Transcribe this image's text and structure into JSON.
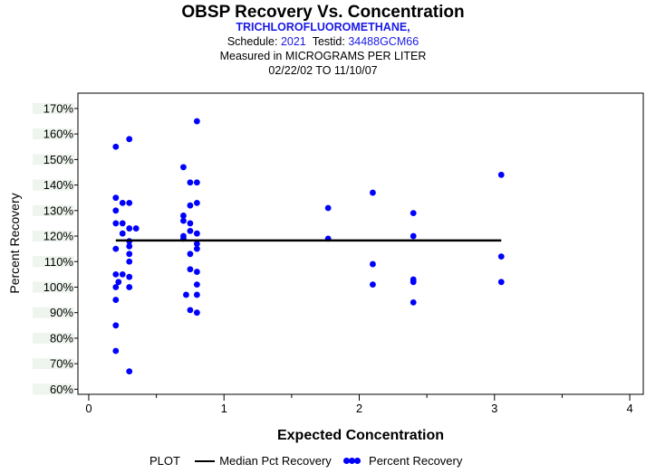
{
  "header": {
    "title": "OBSP Recovery Vs. Concentration",
    "compound": "TRICHLOROFLUOROMETHANE,",
    "schedule_label": "Schedule:",
    "schedule_value": "2021",
    "testid_label": "Testid:",
    "testid_value": "34488GCM66",
    "measured": "Measured in  MICROGRAMS PER LITER",
    "date_range": "02/22/02 TO 11/10/07"
  },
  "legend": {
    "title": "PLOT",
    "median_label": "Median Pct Recovery",
    "points_label": "Percent Recovery"
  },
  "colors": {
    "points": "#0000ff",
    "median": "#000000",
    "axis": "#000000"
  },
  "chart_data": {
    "type": "scatter",
    "title": "OBSP Recovery Vs. Concentration",
    "xlabel": "Expected Concentration",
    "ylabel": "Percent Recovery",
    "xlim": [
      -0.08,
      4.1
    ],
    "ylim": [
      58,
      176
    ],
    "x_ticks": [
      0,
      1,
      2,
      3,
      4
    ],
    "x_tick_labels": [
      "0",
      "1",
      "2",
      "3",
      "4"
    ],
    "x_minor_ticks": [
      0.5,
      1.5,
      2.5,
      3.5
    ],
    "y_ticks": [
      60,
      70,
      80,
      90,
      100,
      110,
      120,
      130,
      140,
      150,
      160,
      170
    ],
    "y_tick_labels": [
      "60%",
      "70%",
      "80%",
      "90%",
      "100%",
      "110%",
      "120%",
      "130%",
      "140%",
      "150%",
      "160%",
      "170%"
    ],
    "median": {
      "name": "Median Pct Recovery",
      "value": 118.3,
      "x_range": [
        0.2,
        3.05
      ]
    },
    "series": [
      {
        "name": "Percent Recovery",
        "points": [
          [
            0.2,
            155
          ],
          [
            0.2,
            135
          ],
          [
            0.2,
            130
          ],
          [
            0.2,
            125
          ],
          [
            0.2,
            115
          ],
          [
            0.2,
            105
          ],
          [
            0.2,
            100
          ],
          [
            0.2,
            95
          ],
          [
            0.2,
            85
          ],
          [
            0.2,
            75
          ],
          [
            0.22,
            102
          ],
          [
            0.25,
            133
          ],
          [
            0.25,
            125
          ],
          [
            0.25,
            121
          ],
          [
            0.25,
            105
          ],
          [
            0.3,
            158
          ],
          [
            0.3,
            133
          ],
          [
            0.3,
            123
          ],
          [
            0.3,
            118
          ],
          [
            0.3,
            116
          ],
          [
            0.3,
            113
          ],
          [
            0.3,
            110
          ],
          [
            0.3,
            104
          ],
          [
            0.3,
            100
          ],
          [
            0.3,
            67
          ],
          [
            0.35,
            123
          ],
          [
            0.7,
            147
          ],
          [
            0.7,
            128
          ],
          [
            0.7,
            126
          ],
          [
            0.7,
            120
          ],
          [
            0.7,
            119
          ],
          [
            0.72,
            97
          ],
          [
            0.75,
            141
          ],
          [
            0.75,
            132
          ],
          [
            0.75,
            125
          ],
          [
            0.75,
            122
          ],
          [
            0.75,
            113
          ],
          [
            0.75,
            107
          ],
          [
            0.75,
            91
          ],
          [
            0.8,
            165
          ],
          [
            0.8,
            141
          ],
          [
            0.8,
            133
          ],
          [
            0.8,
            121
          ],
          [
            0.8,
            117
          ],
          [
            0.8,
            115
          ],
          [
            0.8,
            106
          ],
          [
            0.8,
            101
          ],
          [
            0.8,
            97
          ],
          [
            0.8,
            90
          ],
          [
            1.77,
            131
          ],
          [
            1.77,
            119
          ],
          [
            2.1,
            137
          ],
          [
            2.1,
            109
          ],
          [
            2.1,
            101
          ],
          [
            2.4,
            129
          ],
          [
            2.4,
            120
          ],
          [
            2.4,
            103
          ],
          [
            2.4,
            102
          ],
          [
            2.4,
            94
          ],
          [
            3.05,
            144
          ],
          [
            3.05,
            112
          ],
          [
            3.05,
            102
          ]
        ]
      }
    ]
  }
}
